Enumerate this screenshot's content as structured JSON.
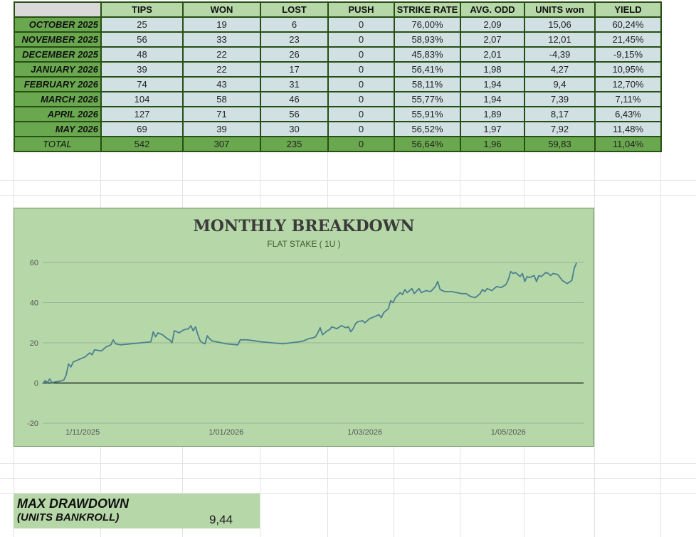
{
  "table": {
    "headers": [
      "",
      "TIPS",
      "WON",
      "LOST",
      "PUSH",
      "STRIKE RATE",
      "AVG. ODD",
      "UNITS won",
      "YIELD"
    ],
    "rows": [
      {
        "month": "OCTOBER 2025",
        "tips": "25",
        "won": "19",
        "lost": "6",
        "push": "0",
        "strike": "76,00%",
        "avg_odd": "2,09",
        "units": "15,06",
        "yield": "60,24%"
      },
      {
        "month": "NOVEMBER 2025",
        "tips": "56",
        "won": "33",
        "lost": "23",
        "push": "0",
        "strike": "58,93%",
        "avg_odd": "2,07",
        "units": "12,01",
        "yield": "21,45%"
      },
      {
        "month": "DECEMBER 2025",
        "tips": "48",
        "won": "22",
        "lost": "26",
        "push": "0",
        "strike": "45,83%",
        "avg_odd": "2,01",
        "units": "-4,39",
        "yield": "-9,15%"
      },
      {
        "month": "JANUARY 2026",
        "tips": "39",
        "won": "22",
        "lost": "17",
        "push": "0",
        "strike": "56,41%",
        "avg_odd": "1,98",
        "units": "4,27",
        "yield": "10,95%"
      },
      {
        "month": "FEBRUARY 2026",
        "tips": "74",
        "won": "43",
        "lost": "31",
        "push": "0",
        "strike": "58,11%",
        "avg_odd": "1,94",
        "units": "9,4",
        "yield": "12,70%"
      },
      {
        "month": "MARCH 2026",
        "tips": "104",
        "won": "58",
        "lost": "46",
        "push": "0",
        "strike": "55,77%",
        "avg_odd": "1,94",
        "units": "7,39",
        "yield": "7,11%"
      },
      {
        "month": "APRIL 2026",
        "tips": "127",
        "won": "71",
        "lost": "56",
        "push": "0",
        "strike": "55,91%",
        "avg_odd": "1,89",
        "units": "8,17",
        "yield": "6,43%"
      },
      {
        "month": "MAY 2026",
        "tips": "69",
        "won": "39",
        "lost": "30",
        "push": "0",
        "strike": "56,52%",
        "avg_odd": "1,97",
        "units": "7,92",
        "yield": "11,48%"
      }
    ],
    "total": {
      "month": "TOTAL",
      "tips": "542",
      "won": "307",
      "lost": "235",
      "push": "0",
      "strike": "56,64%",
      "avg_odd": "1,96",
      "units": "59,83",
      "yield": "11,04%"
    }
  },
  "chart_data": {
    "type": "line",
    "title": "MONTHLY BREAKDOWN",
    "subtitle": "FLAT STAKE ( 1U )",
    "xlabel": "",
    "ylabel": "",
    "ylim": [
      -20,
      60
    ],
    "yticks": [
      -20,
      0,
      20,
      40,
      60
    ],
    "xlim": [
      "2025-10-15",
      "2026-06-02"
    ],
    "xticks": [
      {
        "date": "2025-11-01",
        "label": "1/11/2025"
      },
      {
        "date": "2026-01-01",
        "label": "1/01/2026"
      },
      {
        "date": "2026-03-01",
        "label": "1/03/2026"
      },
      {
        "date": "2026-05-01",
        "label": "1/05/2026"
      }
    ],
    "grid": true,
    "line_color": "#4a8090",
    "series": [
      {
        "points": [
          [
            "2025-10-15",
            -0.5
          ],
          [
            "2025-10-16",
            1.2
          ],
          [
            "2025-10-17",
            0.2
          ],
          [
            "2025-10-18",
            2.0
          ],
          [
            "2025-10-19",
            0.1
          ],
          [
            "2025-10-20",
            0.5
          ],
          [
            "2025-10-22",
            0.8
          ],
          [
            "2025-10-24",
            1.5
          ],
          [
            "2025-10-25",
            4.0
          ],
          [
            "2025-10-26",
            9.5
          ],
          [
            "2025-10-27",
            8.0
          ],
          [
            "2025-10-28",
            10.5
          ],
          [
            "2025-10-31",
            12.0
          ],
          [
            "2025-11-02",
            13.0
          ],
          [
            "2025-11-04",
            15.0
          ],
          [
            "2025-11-05",
            14.0
          ],
          [
            "2025-11-06",
            16.5
          ],
          [
            "2025-11-09",
            16.0
          ],
          [
            "2025-11-11",
            18.0
          ],
          [
            "2025-11-13",
            19.0
          ],
          [
            "2025-11-14",
            21.5
          ],
          [
            "2025-11-15",
            19.5
          ],
          [
            "2025-11-17",
            19.0
          ],
          [
            "2025-11-30",
            20.5
          ],
          [
            "2025-12-01",
            25.5
          ],
          [
            "2025-12-02",
            23.0
          ],
          [
            "2025-12-03",
            25.0
          ],
          [
            "2025-12-05",
            24.0
          ],
          [
            "2025-12-07",
            22.0
          ],
          [
            "2025-12-08",
            21.5
          ],
          [
            "2025-12-09",
            20.0
          ],
          [
            "2025-12-10",
            26.0
          ],
          [
            "2025-12-12",
            25.0
          ],
          [
            "2025-12-14",
            26.5
          ],
          [
            "2025-12-16",
            27.0
          ],
          [
            "2025-12-17",
            28.5
          ],
          [
            "2025-12-18",
            26.0
          ],
          [
            "2025-12-19",
            28.0
          ],
          [
            "2025-12-20",
            24.0
          ],
          [
            "2025-12-21",
            21.0
          ],
          [
            "2025-12-22",
            20.0
          ],
          [
            "2025-12-23",
            19.5
          ],
          [
            "2025-12-24",
            23.5
          ],
          [
            "2025-12-25",
            22.0
          ],
          [
            "2025-12-26",
            21.0
          ],
          [
            "2026-01-01",
            19.5
          ],
          [
            "2026-01-06",
            19.0
          ],
          [
            "2026-01-07",
            21.5
          ],
          [
            "2026-01-10",
            21.5
          ],
          [
            "2026-01-13",
            21.0
          ],
          [
            "2026-01-16",
            20.5
          ],
          [
            "2026-01-25",
            19.5
          ],
          [
            "2026-02-01",
            20.5
          ],
          [
            "2026-02-03",
            21.0
          ],
          [
            "2026-02-05",
            22.0
          ],
          [
            "2026-02-07",
            22.5
          ],
          [
            "2026-02-08",
            23.0
          ],
          [
            "2026-02-09",
            25.0
          ],
          [
            "2026-02-10",
            27.5
          ],
          [
            "2026-02-11",
            24.0
          ],
          [
            "2026-02-13",
            26.0
          ],
          [
            "2026-02-14",
            26.5
          ],
          [
            "2026-02-15",
            28.0
          ],
          [
            "2026-02-17",
            27.0
          ],
          [
            "2026-02-19",
            28.5
          ],
          [
            "2026-02-21",
            27.5
          ],
          [
            "2026-02-22",
            28.0
          ],
          [
            "2026-02-23",
            25.5
          ],
          [
            "2026-02-24",
            27.0
          ],
          [
            "2026-02-25",
            29.5
          ],
          [
            "2026-02-26",
            30.5
          ],
          [
            "2026-02-28",
            31.0
          ],
          [
            "2026-03-01",
            30.0
          ],
          [
            "2026-03-03",
            32.0
          ],
          [
            "2026-03-05",
            33.0
          ],
          [
            "2026-03-07",
            34.0
          ],
          [
            "2026-03-08",
            32.5
          ],
          [
            "2026-03-09",
            35.0
          ],
          [
            "2026-03-11",
            37.0
          ],
          [
            "2026-03-12",
            41.0
          ],
          [
            "2026-03-13",
            40.0
          ],
          [
            "2026-03-14",
            42.5
          ],
          [
            "2026-03-16",
            45.0
          ],
          [
            "2026-03-17",
            44.0
          ],
          [
            "2026-03-18",
            46.5
          ],
          [
            "2026-03-19",
            45.0
          ],
          [
            "2026-03-21",
            47.0
          ],
          [
            "2026-03-22",
            44.5
          ],
          [
            "2026-03-24",
            47.0
          ],
          [
            "2026-03-25",
            45.0
          ],
          [
            "2026-03-27",
            46.0
          ],
          [
            "2026-03-29",
            45.5
          ],
          [
            "2026-03-31",
            48.0
          ],
          [
            "2026-04-01",
            50.5
          ],
          [
            "2026-04-02",
            46.5
          ],
          [
            "2026-04-04",
            45.5
          ],
          [
            "2026-04-07",
            45.5
          ],
          [
            "2026-04-11",
            44.5
          ],
          [
            "2026-04-13",
            44.5
          ],
          [
            "2026-04-15",
            43.0
          ],
          [
            "2026-04-17",
            42.5
          ],
          [
            "2026-04-19",
            44.5
          ],
          [
            "2026-04-20",
            46.5
          ],
          [
            "2026-04-21",
            45.5
          ],
          [
            "2026-04-22",
            47.0
          ],
          [
            "2026-04-24",
            46.0
          ],
          [
            "2026-04-26",
            48.0
          ],
          [
            "2026-04-28",
            47.5
          ],
          [
            "2026-04-30",
            49.0
          ],
          [
            "2026-05-01",
            51.5
          ],
          [
            "2026-05-02",
            55.5
          ],
          [
            "2026-05-03",
            54.5
          ],
          [
            "2026-05-04",
            55.0
          ],
          [
            "2026-05-06",
            53.0
          ],
          [
            "2026-05-07",
            54.5
          ],
          [
            "2026-05-08",
            50.5
          ],
          [
            "2026-05-09",
            53.0
          ],
          [
            "2026-05-10",
            52.5
          ],
          [
            "2026-05-12",
            53.5
          ],
          [
            "2026-05-13",
            50.5
          ],
          [
            "2026-05-14",
            53.5
          ],
          [
            "2026-05-15",
            53.0
          ],
          [
            "2026-05-17",
            55.0
          ],
          [
            "2026-05-18",
            54.5
          ],
          [
            "2026-05-19",
            53.5
          ],
          [
            "2026-05-20",
            54.5
          ],
          [
            "2026-05-22",
            54.0
          ],
          [
            "2026-05-24",
            51.0
          ],
          [
            "2026-05-26",
            49.5
          ],
          [
            "2026-05-28",
            51.0
          ],
          [
            "2026-05-29",
            57.0
          ],
          [
            "2026-05-30",
            59.83
          ]
        ]
      }
    ]
  },
  "drawdown": {
    "label_line1": "MAX DRAWDOWN",
    "label_line2": "(UNITS BANKROLL)",
    "value": "9,44"
  }
}
